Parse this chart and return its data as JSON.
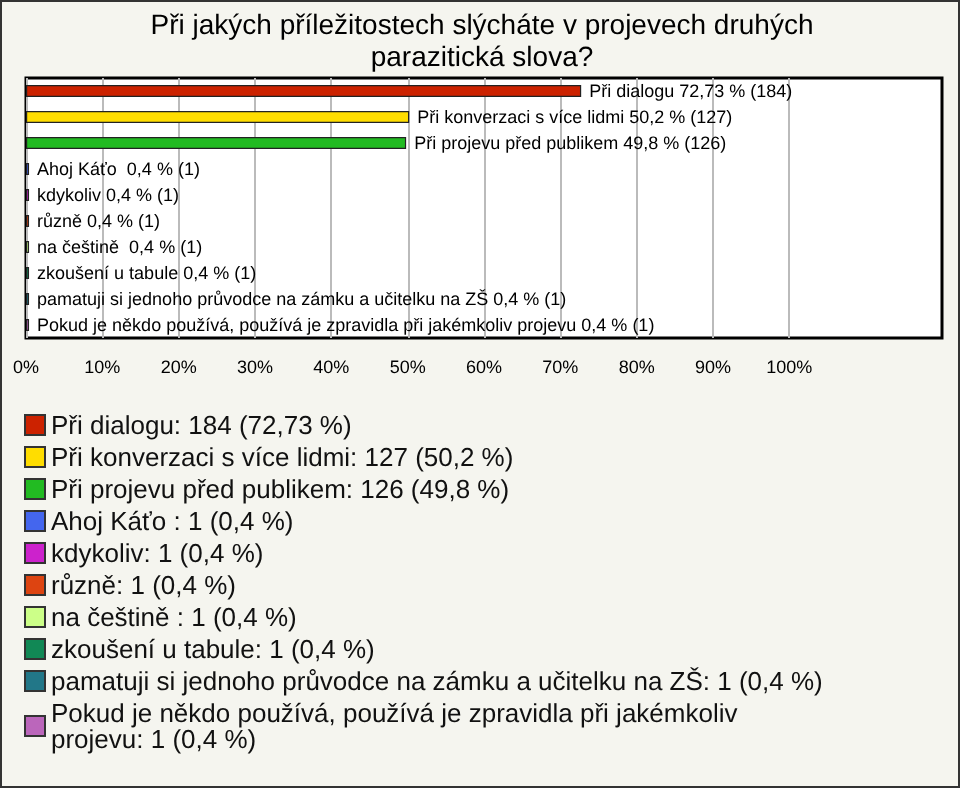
{
  "chart_data": {
    "type": "bar",
    "orientation": "horizontal",
    "title": "Při jakých příležitostech slýcháte v projevech druhých parazitická slova?",
    "categories": [
      null,
      null,
      null,
      null,
      null,
      null,
      null,
      null,
      null,
      null
    ],
    "series": [
      {
        "name": "Při dialogu: 184 (72,73 %)",
        "color": "#cc2200",
        "values": [
          72.73,
          null,
          null,
          null,
          null,
          null,
          null,
          null,
          null,
          null
        ],
        "value_labels": [
          "Při dialogu 72,73 % (184)",
          null,
          null,
          null,
          null,
          null,
          null,
          null,
          null,
          null
        ]
      },
      {
        "name": "Při konverzaci s více lidmi: 127 (50,2 %)",
        "color": "#ffdd00",
        "values": [
          null,
          50.2,
          null,
          null,
          null,
          null,
          null,
          null,
          null,
          null
        ],
        "value_labels": [
          null,
          "Při konverzaci s více lidmi 50,2 % (127)",
          null,
          null,
          null,
          null,
          null,
          null,
          null,
          null
        ]
      },
      {
        "name": "Při projevu před publikem: 126 (49,8 %)",
        "color": "#22bb22",
        "values": [
          null,
          null,
          49.8,
          null,
          null,
          null,
          null,
          null,
          null,
          null
        ],
        "value_labels": [
          null,
          null,
          "Při projevu před publikem 49,8 % (126)",
          null,
          null,
          null,
          null,
          null,
          null,
          null
        ]
      },
      {
        "name": "Ahoj Káťo : 1 (0,4 %)",
        "color": "#4466ee",
        "values": [
          null,
          null,
          null,
          0.4,
          null,
          null,
          null,
          null,
          null,
          null
        ],
        "value_labels": [
          null,
          null,
          null,
          "Ahoj Káťo  0,4 % (1)",
          null,
          null,
          null,
          null,
          null,
          null
        ]
      },
      {
        "name": "kdykoliv: 1 (0,4 %)",
        "color": "#cc22cc",
        "values": [
          null,
          null,
          null,
          null,
          0.4,
          null,
          null,
          null,
          null,
          null
        ],
        "value_labels": [
          null,
          null,
          null,
          null,
          "kdykoliv 0,4 % (1)",
          null,
          null,
          null,
          null,
          null
        ]
      },
      {
        "name": "různě: 1 (0,4 %)",
        "color": "#dd4411",
        "values": [
          null,
          null,
          null,
          null,
          null,
          0.4,
          null,
          null,
          null,
          null
        ],
        "value_labels": [
          null,
          null,
          null,
          null,
          null,
          "různě 0,4 % (1)",
          null,
          null,
          null,
          null
        ]
      },
      {
        "name": "na češtině : 1 (0,4 %)",
        "color": "#ccff88",
        "values": [
          null,
          null,
          null,
          null,
          null,
          null,
          0.4,
          null,
          null,
          null
        ],
        "value_labels": [
          null,
          null,
          null,
          null,
          null,
          null,
          "na češtině  0,4 % (1)",
          null,
          null,
          null
        ]
      },
      {
        "name": "zkoušení u tabule: 1 (0,4 %)",
        "color": "#118855",
        "values": [
          null,
          null,
          null,
          null,
          null,
          null,
          null,
          0.4,
          null,
          null
        ],
        "value_labels": [
          null,
          null,
          null,
          null,
          null,
          null,
          null,
          "zkoušení u tabule 0,4 % (1)",
          null,
          null
        ]
      },
      {
        "name": "pamatuji si jednoho průvodce na zámku a učitelku na ZŠ: 1 (0,4 %)",
        "color": "#227788",
        "values": [
          null,
          null,
          null,
          null,
          null,
          null,
          null,
          null,
          0.4,
          null
        ],
        "value_labels": [
          null,
          null,
          null,
          null,
          null,
          null,
          null,
          null,
          "pamatuji si jednoho průvodce na zámku a učitelku na ZŠ 0,4 % (1)",
          null
        ]
      },
      {
        "name": "Pokud je někdo používá, používá je zpravidla při jakémkoliv projevu: 1 (0,4 %)",
        "color": "#bb66bb",
        "values": [
          null,
          null,
          null,
          null,
          null,
          null,
          null,
          null,
          null,
          0.4
        ],
        "value_labels": [
          null,
          null,
          null,
          null,
          null,
          null,
          null,
          null,
          null,
          "Pokud je někdo používá, používá je zpravidla při jakémkoliv projevu 0,4 % (1)"
        ]
      }
    ],
    "xlim": [
      0,
      120
    ],
    "xticks": [
      {
        "value": 0,
        "label": "0%"
      },
      {
        "value": 10,
        "label": "10%"
      },
      {
        "value": 20,
        "label": "20%"
      },
      {
        "value": 30,
        "label": "30%"
      },
      {
        "value": 40,
        "label": "40%"
      },
      {
        "value": 50,
        "label": "50%"
      },
      {
        "value": 60,
        "label": "60%"
      },
      {
        "value": 70,
        "label": "70%"
      },
      {
        "value": 80,
        "label": "80%"
      },
      {
        "value": 90,
        "label": "90%"
      },
      {
        "value": 100,
        "label": "100%"
      }
    ],
    "grid": "x",
    "legend": "bottom"
  }
}
